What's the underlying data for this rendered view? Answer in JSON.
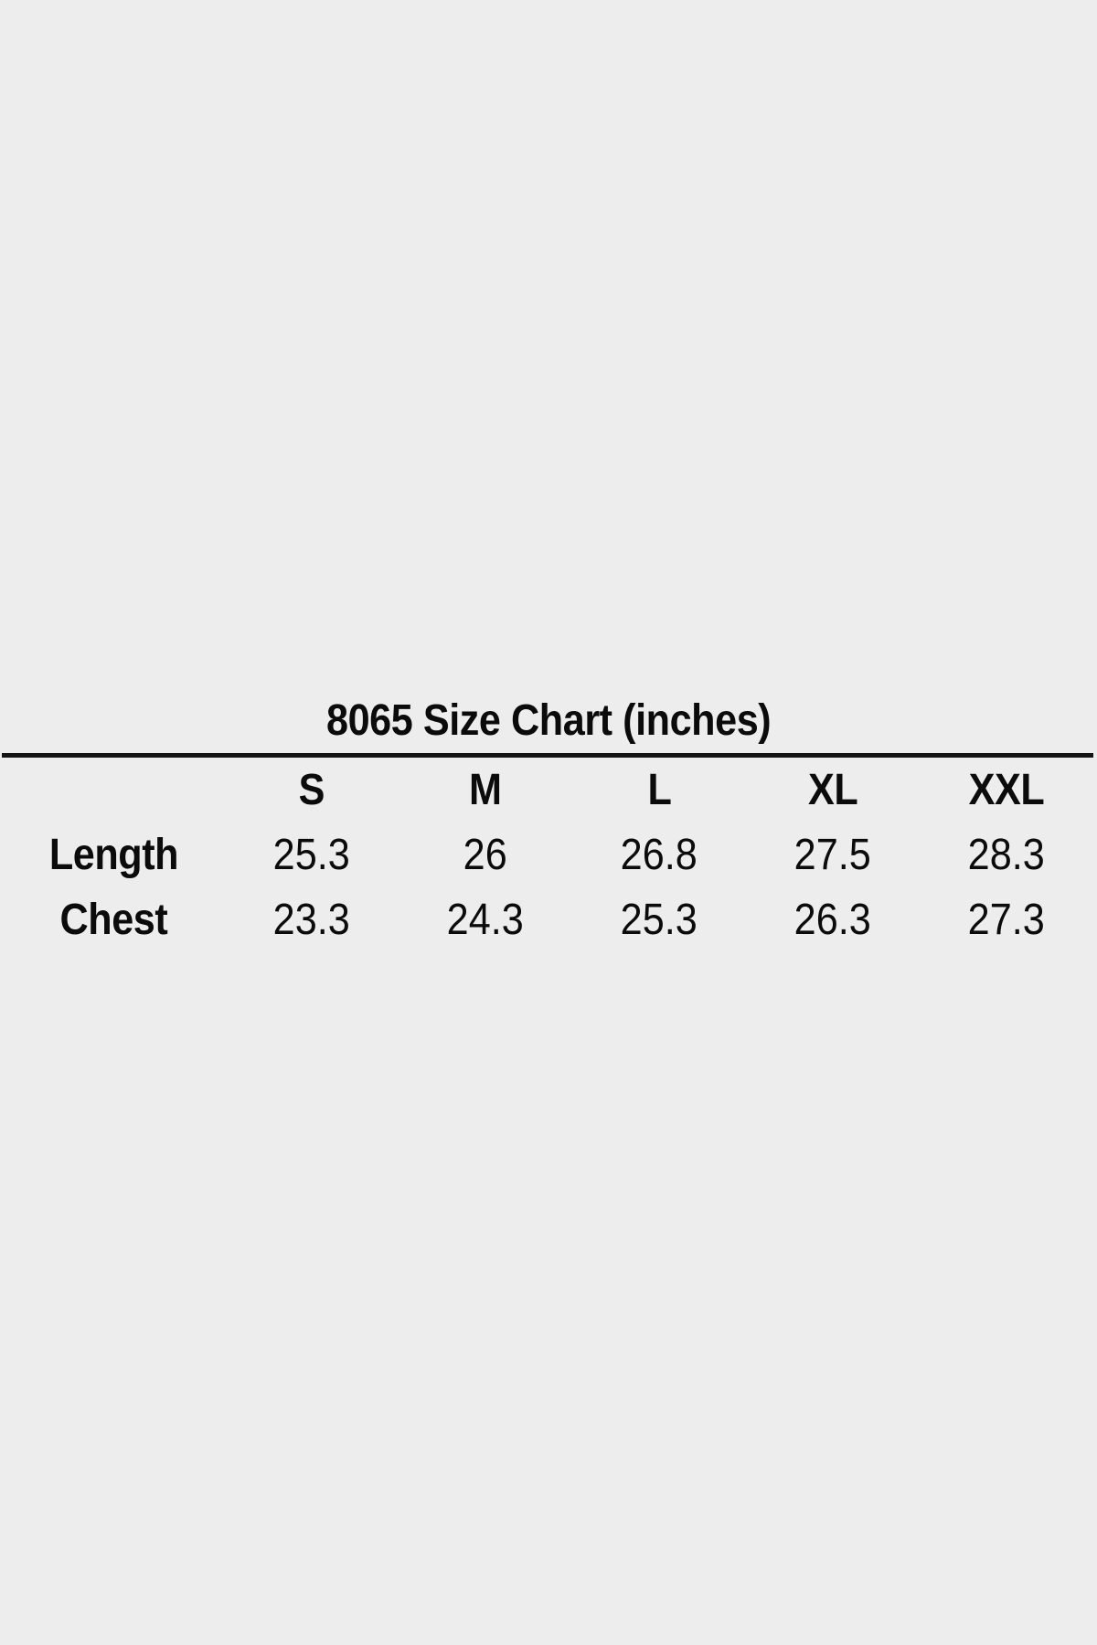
{
  "page": {
    "background_color": "#ededed",
    "text_color": "#0b0b0b",
    "divider_color": "#141414"
  },
  "size_chart": {
    "title": "8065 Size Chart (inches)",
    "columns": [
      "S",
      "M",
      "L",
      "XL",
      "XXL"
    ],
    "rows": [
      {
        "label": "Length",
        "values": [
          "25.3",
          "26",
          "26.8",
          "27.5",
          "28.3"
        ]
      },
      {
        "label": "Chest",
        "values": [
          "23.3",
          "24.3",
          "25.3",
          "26.3",
          "27.3"
        ]
      }
    ]
  },
  "chart_data": {
    "type": "table",
    "title": "8065 Size Chart (inches)",
    "units": "inches",
    "columns": [
      "",
      "S",
      "M",
      "L",
      "XL",
      "XXL"
    ],
    "rows": [
      [
        "Length",
        25.3,
        26,
        26.8,
        27.5,
        28.3
      ],
      [
        "Chest",
        23.3,
        24.3,
        25.3,
        26.3,
        27.3
      ]
    ]
  }
}
